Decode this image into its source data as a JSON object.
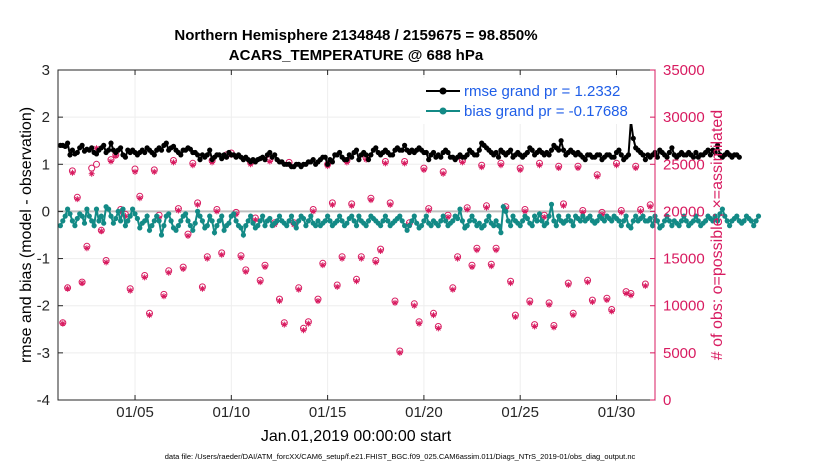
{
  "chart_data": {
    "type": "line",
    "title": "Northern Hemisphere 2134848 / 2159675 = 98.850%",
    "subtitle": "ACARS_TEMPERATURE @ 688 hPa",
    "xlabel": "Jan.01,2019 00:00:00 start",
    "ylabel_left": "rmse and bias (model - observation)",
    "ylabel_right": "# of obs: o=possible; ×=assimilated",
    "xlim": [
      1,
      32
    ],
    "ylim_left": [
      -4,
      3
    ],
    "ylim_right": [
      0,
      35000
    ],
    "x_ticks": [
      5,
      10,
      15,
      20,
      25,
      30
    ],
    "x_tick_labels": [
      "01/05",
      "01/10",
      "01/15",
      "01/20",
      "01/25",
      "01/30"
    ],
    "y_left_ticks": [
      "-4",
      "-3",
      "-2",
      "-1",
      "0",
      "1",
      "2",
      "3"
    ],
    "y_right_ticks": [
      "0",
      "5000",
      "10000",
      "15000",
      "20000",
      "25000",
      "30000",
      "35000"
    ],
    "legend_position": "top-right",
    "colors": {
      "rmse": "#000000",
      "bias": "#138a86",
      "obs": "#d81b60",
      "zero_line": "#bfbfbf",
      "grid": "#eeeeee"
    },
    "series": [
      {
        "name": "rmse grand pr = 1.2332",
        "axis": "left",
        "x_start": 1.125,
        "x_step": 0.125,
        "values": [
          1.4,
          1.4,
          1.38,
          1.45,
          1.2,
          1.3,
          1.22,
          1.25,
          1.35,
          1.4,
          1.28,
          1.32,
          1.3,
          1.35,
          1.25,
          1.22,
          1.3,
          1.35,
          1.4,
          1.25,
          1.3,
          1.45,
          1.3,
          1.25,
          1.3,
          1.35,
          1.2,
          1.15,
          1.3,
          1.25,
          1.3,
          1.25,
          1.2,
          1.25,
          1.3,
          1.25,
          1.35,
          1.3,
          1.25,
          1.2,
          1.3,
          1.35,
          1.3,
          1.4,
          1.45,
          1.3,
          1.35,
          1.38,
          1.3,
          1.25,
          1.2,
          1.3,
          1.3,
          1.35,
          1.32,
          1.25,
          1.25,
          1.2,
          1.1,
          1.2,
          1.15,
          1.2,
          1.3,
          1.1,
          1.15,
          1.2,
          1.2,
          1.12,
          1.2,
          1.15,
          1.25,
          1.2,
          1.2,
          1.15,
          1.2,
          1.15,
          1.1,
          1.15,
          1.1,
          1.05,
          1.1,
          1.05,
          1.1,
          1.12,
          1.15,
          1.1,
          1.2,
          1.25,
          1.15,
          1.2,
          1.1,
          1.05,
          1.05,
          1.0,
          1.0,
          1.0,
          0.95,
          0.95,
          1.0,
          1.0,
          0.95,
          1.0,
          1.0,
          1.05,
          1.05,
          1.1,
          1.0,
          1.05,
          1.1,
          1.15,
          1.15,
          1.0,
          1.1,
          1.05,
          1.2,
          1.2,
          1.25,
          1.15,
          1.1,
          1.1,
          1.2,
          1.15,
          1.25,
          1.3,
          1.1,
          1.2,
          1.25,
          1.2,
          1.1,
          1.2,
          1.3,
          1.35,
          1.25,
          1.2,
          1.25,
          1.3,
          1.25,
          1.2,
          1.2,
          1.3,
          1.35,
          1.3,
          1.3,
          1.4,
          1.3,
          1.25,
          1.3,
          1.25,
          1.3,
          1.35,
          1.3,
          1.25,
          1.25,
          1.1,
          1.2,
          1.25,
          1.15,
          1.2,
          1.15,
          1.25,
          1.3,
          1.25,
          1.15,
          1.15,
          1.1,
          1.15,
          1.2,
          1.15,
          1.15,
          1.2,
          1.3,
          1.25,
          1.2,
          1.2,
          1.3,
          1.45,
          1.4,
          1.35,
          1.3,
          1.25,
          1.2,
          1.25,
          1.15,
          1.3,
          1.25,
          1.2,
          1.25,
          1.3,
          1.15,
          1.2,
          1.25,
          1.2,
          1.15,
          1.2,
          1.25,
          1.35,
          1.3,
          1.2,
          1.25,
          1.3,
          1.25,
          1.2,
          1.25,
          1.2,
          1.3,
          1.4,
          1.35,
          1.3,
          1.5,
          1.3,
          1.2,
          1.25,
          1.3,
          1.25,
          1.2,
          1.25,
          1.2,
          1.15,
          1.1,
          1.2,
          1.2,
          1.15,
          1.15,
          1.2,
          1.2,
          1.1,
          1.15,
          1.2,
          1.2,
          1.15,
          1.15,
          1.25,
          1.3,
          1.2,
          1.1,
          1.15,
          1.2,
          1.92,
          1.55,
          1.35,
          1.3,
          1.25,
          1.2,
          1.1,
          1.2,
          1.15,
          1.2,
          1.25,
          1.15,
          1.3,
          1.25,
          1.2,
          1.15,
          1.25,
          1.35,
          1.2,
          1.15,
          1.2,
          1.25,
          1.2,
          1.2,
          1.25,
          1.2,
          1.15,
          1.25,
          1.15,
          1.2,
          1.2,
          1.25,
          1.3,
          1.2,
          1.3,
          1.25,
          1.4,
          1.2,
          1.15,
          1.2,
          1.25,
          1.2,
          1.15,
          1.2,
          1.2,
          1.15
        ]
      },
      {
        "name": "bias grand pr = -0.17688",
        "axis": "left",
        "x_start": 1.125,
        "x_step": 0.125,
        "values": [
          -0.3,
          -0.2,
          -0.1,
          0.05,
          -0.05,
          -0.2,
          -0.3,
          -0.15,
          -0.05,
          -0.1,
          -0.25,
          0.05,
          -0.1,
          -0.2,
          -0.3,
          0.05,
          -0.2,
          -0.1,
          -0.25,
          0.1,
          0.05,
          -0.1,
          -0.25,
          -0.15,
          0.0,
          -0.2,
          0.05,
          -0.3,
          -0.2,
          -0.1,
          0.05,
          -0.05,
          -0.15,
          -0.35,
          -0.25,
          -0.2,
          -0.1,
          -0.4,
          -0.3,
          -0.2,
          -0.1,
          -0.2,
          -0.5,
          -0.3,
          -0.1,
          -0.05,
          -0.2,
          -0.35,
          -0.4,
          -0.3,
          -0.2,
          -0.1,
          -0.05,
          -0.2,
          -0.3,
          -0.4,
          -0.25,
          0.0,
          -0.1,
          -0.2,
          -0.35,
          -0.3,
          -0.1,
          -0.2,
          -0.45,
          -0.3,
          -0.2,
          -0.1,
          -0.4,
          -0.3,
          -0.25,
          -0.1,
          -0.05,
          -0.2,
          -0.3,
          -0.35,
          -0.5,
          -0.3,
          -0.2,
          -0.1,
          -0.25,
          -0.35,
          -0.3,
          -0.2,
          -0.1,
          -0.3,
          -0.2,
          -0.15,
          -0.3,
          -0.25,
          -0.2,
          -0.1,
          -0.2,
          -0.25,
          -0.3,
          -0.2,
          -0.1,
          -0.25,
          -0.35,
          -0.2,
          -0.1,
          -0.15,
          -0.3,
          -0.2,
          -0.1,
          -0.25,
          -0.3,
          -0.2,
          -0.3,
          -0.25,
          -0.2,
          -0.1,
          -0.2,
          -0.3,
          -0.25,
          -0.2,
          -0.1,
          -0.2,
          -0.3,
          -0.25,
          -0.15,
          -0.1,
          -0.2,
          -0.3,
          -0.1,
          -0.2,
          -0.25,
          -0.3,
          -0.2,
          -0.1,
          -0.15,
          -0.2,
          -0.25,
          -0.3,
          -0.2,
          -0.1,
          -0.2,
          -0.3,
          -0.25,
          -0.2,
          -0.15,
          -0.1,
          -0.2,
          -0.3,
          -0.4,
          -0.3,
          -0.2,
          -0.1,
          -0.25,
          -0.35,
          -0.3,
          -0.2,
          -0.1,
          -0.25,
          -0.3,
          -0.2,
          -0.25,
          -0.3,
          -0.2,
          -0.1,
          -0.2,
          -0.3,
          -0.25,
          -0.2,
          -0.1,
          -0.15,
          0.05,
          -0.2,
          -0.35,
          -0.3,
          -0.2,
          -0.1,
          -0.2,
          -0.3,
          -0.25,
          -0.35,
          -0.3,
          -0.2,
          -0.1,
          -0.25,
          -0.3,
          -0.2,
          -0.3,
          -0.45,
          0.1,
          0.0,
          -0.2,
          -0.3,
          -0.1,
          -0.2,
          -0.25,
          -0.3,
          -0.2,
          -0.1,
          -0.15,
          -0.25,
          -0.3,
          -0.1,
          -0.2,
          -0.05,
          -0.2,
          -0.3,
          -0.25,
          -0.1,
          0.15,
          -0.2,
          -0.3,
          -0.1,
          -0.2,
          -0.25,
          -0.2,
          -0.1,
          -0.2,
          -0.3,
          -0.1,
          -0.15,
          -0.2,
          -0.1,
          -0.2,
          -0.15,
          -0.1,
          -0.2,
          -0.25,
          -0.2,
          -0.1,
          -0.15,
          -0.2,
          -0.1,
          -0.15,
          -0.2,
          -0.1,
          -0.15,
          -0.2,
          -0.3,
          -0.2,
          -0.1,
          -0.3,
          -0.35,
          -0.2,
          -0.1,
          -0.2,
          -0.15,
          -0.1,
          -0.2,
          -0.2,
          -0.15,
          -0.3,
          -0.1,
          -0.2,
          -0.35,
          -0.3,
          -0.2,
          -0.1,
          -0.2,
          -0.3,
          -0.2,
          -0.25,
          -0.3,
          -0.2,
          -0.1,
          -0.2,
          -0.3,
          -0.25,
          -0.2,
          -0.1,
          -0.2,
          -0.3,
          -0.25,
          -0.2,
          -0.1,
          -0.15,
          -0.2,
          -0.1,
          -0.2,
          -0.05,
          0.05,
          -0.1,
          -0.2,
          -0.3,
          -0.2,
          -0.15,
          -0.1,
          -0.2,
          -0.25,
          -0.2,
          -0.1,
          -0.15,
          -0.2,
          -0.3,
          -0.2,
          -0.1
        ]
      },
      {
        "name": "possible",
        "axis": "right",
        "marker": "circle",
        "x": [
          1.25,
          1.5,
          1.75,
          2,
          2.25,
          2.5,
          2.75,
          3,
          3.25,
          3.5,
          3.75,
          4,
          4.25,
          4.5,
          4.75,
          5,
          5.25,
          5.5,
          5.75,
          6,
          6.25,
          6.5,
          6.75,
          7,
          7.25,
          7.5,
          7.75,
          8,
          8.25,
          8.5,
          8.75,
          9,
          9.25,
          9.5,
          9.75,
          10,
          10.25,
          10.5,
          10.75,
          11,
          11.25,
          11.5,
          11.75,
          12,
          12.25,
          12.5,
          12.75,
          13,
          13.25,
          13.5,
          13.75,
          14,
          14.25,
          14.5,
          14.75,
          15,
          15.25,
          15.5,
          15.75,
          16,
          16.25,
          16.5,
          16.75,
          17,
          17.25,
          17.5,
          17.75,
          18,
          18.25,
          18.5,
          18.75,
          19,
          19.25,
          19.5,
          19.75,
          20,
          20.25,
          20.5,
          20.75,
          21,
          21.25,
          21.5,
          21.75,
          22,
          22.25,
          22.5,
          22.75,
          23,
          23.25,
          23.5,
          23.75,
          24,
          24.25,
          24.5,
          24.75,
          25,
          25.25,
          25.5,
          25.75,
          26,
          26.25,
          26.5,
          26.75,
          27,
          27.25,
          27.5,
          27.75,
          28,
          28.25,
          28.5,
          28.75,
          29,
          29.25,
          29.5,
          29.75,
          30,
          30.25,
          30.5,
          30.75,
          31,
          31.25,
          31.5,
          31.75
        ],
        "values": [
          8200,
          11900,
          24300,
          21500,
          12500,
          16300,
          24600,
          25000,
          18000,
          14800,
          25500,
          26000,
          20200,
          19700,
          11800,
          24500,
          21600,
          13200,
          9200,
          24400,
          19600,
          11200,
          13700,
          25400,
          20300,
          14100,
          17600,
          25100,
          20900,
          12000,
          15200,
          25400,
          20200,
          15600,
          26000,
          26200,
          19900,
          15300,
          13800,
          25200,
          19300,
          12700,
          14300,
          25500,
          18800,
          10700,
          8200,
          25200,
          18800,
          11900,
          7600,
          8300,
          20200,
          10700,
          14500,
          25000,
          20900,
          12200,
          15200,
          25400,
          20800,
          12800,
          15200,
          25700,
          21400,
          14800,
          16000,
          25300,
          20900,
          10500,
          5200,
          25300,
          18800,
          10200,
          8300,
          24600,
          20300,
          9200,
          7800,
          24200,
          19600,
          11900,
          15200,
          25400,
          20400,
          14300,
          16100,
          24900,
          20600,
          14400,
          16100,
          25100,
          20500,
          12600,
          9000,
          24600,
          20200,
          10500,
          8000,
          25100,
          19600,
          10300,
          7900,
          24800,
          20800,
          12400,
          9200,
          24800,
          20100,
          12700,
          10600,
          23900,
          19900,
          10800,
          9600,
          25100,
          20100,
          11500,
          11300,
          24800,
          20200,
          12300,
          20700
        ]
      },
      {
        "name": "assimilated",
        "axis": "right",
        "marker": "asterisk",
        "x": [
          1.25,
          1.5,
          1.75,
          2,
          2.25,
          2.5,
          2.75,
          3,
          3.25,
          3.5,
          3.75,
          4,
          4.25,
          4.5,
          4.75,
          5,
          5.25,
          5.5,
          5.75,
          6,
          6.25,
          6.5,
          6.75,
          7,
          7.25,
          7.5,
          7.75,
          8,
          8.25,
          8.5,
          8.75,
          9,
          9.25,
          9.5,
          9.75,
          10,
          10.25,
          10.5,
          10.75,
          11,
          11.25,
          11.5,
          11.75,
          12,
          12.25,
          12.5,
          12.75,
          13,
          13.25,
          13.5,
          13.75,
          14,
          14.25,
          14.5,
          14.75,
          15,
          15.25,
          15.5,
          15.75,
          16,
          16.25,
          16.5,
          16.75,
          17,
          17.25,
          17.5,
          17.75,
          18,
          18.25,
          18.5,
          18.75,
          19,
          19.25,
          19.5,
          19.75,
          20,
          20.25,
          20.5,
          20.75,
          21,
          21.25,
          21.5,
          21.75,
          22,
          22.25,
          22.5,
          22.75,
          23,
          23.25,
          23.5,
          23.75,
          24,
          24.25,
          24.5,
          24.75,
          25,
          25.25,
          25.5,
          25.75,
          26,
          26.25,
          26.5,
          26.75,
          27,
          27.25,
          27.5,
          27.75,
          28,
          28.25,
          28.5,
          28.75,
          29,
          29.25,
          29.5,
          29.75,
          30,
          30.25,
          30.5,
          30.75,
          31,
          31.25,
          31.5,
          31.75
        ],
        "values": [
          8100,
          11800,
          24100,
          21300,
          12400,
          16100,
          24000,
          26700,
          17900,
          14600,
          25300,
          25900,
          20000,
          19500,
          11600,
          24200,
          21400,
          13000,
          9000,
          24200,
          19300,
          11000,
          13500,
          25200,
          20100,
          13900,
          17400,
          24900,
          20700,
          11800,
          15000,
          25200,
          20000,
          15400,
          25800,
          26000,
          19700,
          15100,
          13600,
          25000,
          19100,
          12500,
          14100,
          25300,
          18600,
          10500,
          8000,
          25000,
          18600,
          11700,
          7400,
          8100,
          20000,
          10500,
          14300,
          24800,
          20700,
          12000,
          15000,
          25200,
          20600,
          12600,
          15000,
          25500,
          21200,
          14600,
          15800,
          25100,
          20700,
          10300,
          5000,
          25100,
          18600,
          10000,
          8100,
          24400,
          20100,
          9000,
          7600,
          24000,
          19400,
          11700,
          15000,
          25200,
          20200,
          14100,
          15900,
          24700,
          20400,
          14200,
          15900,
          24900,
          20300,
          12400,
          8800,
          24400,
          20000,
          10300,
          7800,
          24900,
          19400,
          10100,
          7700,
          24600,
          20600,
          12200,
          9000,
          24600,
          19900,
          12500,
          10400,
          23700,
          19700,
          10600,
          9400,
          24900,
          19900,
          11300,
          11100,
          24600,
          20000,
          12100,
          20500
        ]
      }
    ],
    "footer": "data file: /Users/raeder/DAI/ATM_forcXX/CAM6_setup/f.e21.FHIST_BGC.f09_025.CAM6assim.011/Diags_NTrS_2019-01/obs_diag_output.nc"
  }
}
